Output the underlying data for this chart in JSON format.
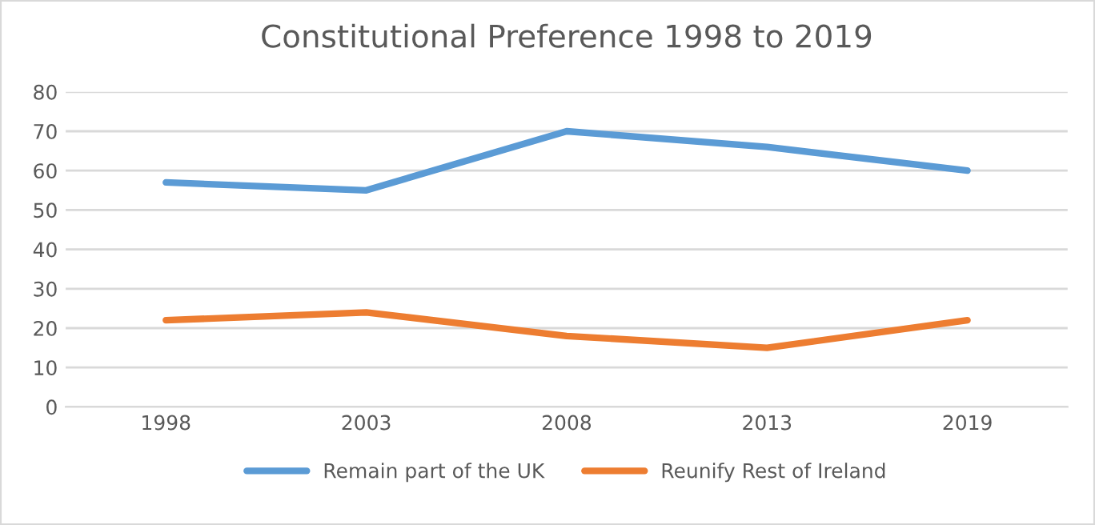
{
  "chart_data": {
    "type": "line",
    "title": "Constitutional Preference 1998 to 2019",
    "categories": [
      "1998",
      "2003",
      "2008",
      "2013",
      "2019"
    ],
    "series": [
      {
        "name": "Remain part of the UK",
        "color": "#5b9bd5",
        "values": [
          57,
          55,
          70,
          66,
          60
        ]
      },
      {
        "name": "Reunify Rest of Ireland",
        "color": "#ed7d31",
        "values": [
          22,
          24,
          18,
          15,
          22
        ]
      }
    ],
    "ylim": [
      0,
      80
    ],
    "yticks": [
      0,
      10,
      20,
      30,
      40,
      50,
      60,
      70,
      80
    ],
    "grid": "y",
    "legend": "bottom",
    "marker": "none",
    "line_style": "solid"
  }
}
